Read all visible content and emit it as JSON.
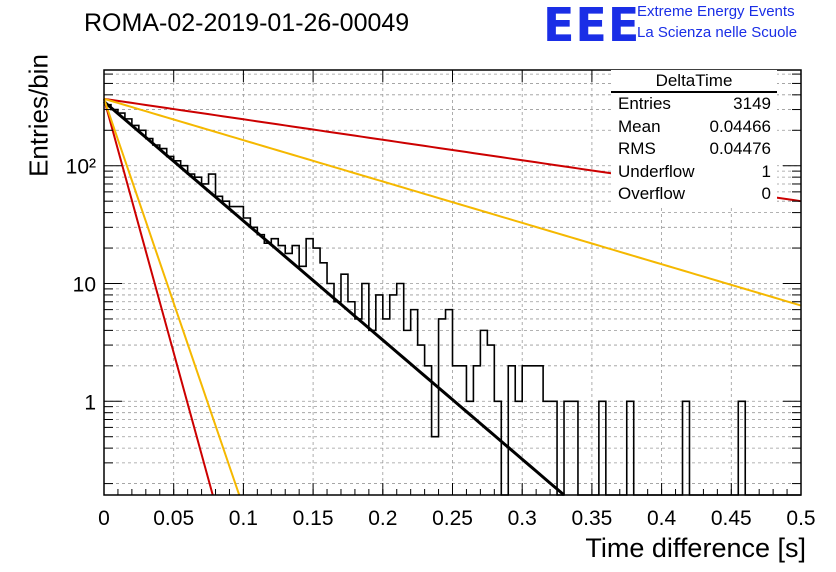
{
  "title": "ROMA-02-2019-01-26-00049",
  "logo": {
    "text": "EEE",
    "line1": "Extreme Energy Events",
    "line2": "La Scienza nelle Scuole",
    "color": "#1a2ee6"
  },
  "stats": {
    "title": "DeltaTime",
    "rows": [
      {
        "label": "Entries",
        "value": "3149"
      },
      {
        "label": "Mean",
        "value": "0.04466"
      },
      {
        "label": "RMS",
        "value": "0.04476"
      },
      {
        "label": "Underflow",
        "value": "1"
      },
      {
        "label": "Overflow",
        "value": "0"
      }
    ]
  },
  "chart_data": {
    "type": "line",
    "title": "ROMA-02-2019-01-26-00049",
    "xlabel": "Time difference [s]",
    "ylabel": "Entries/bin",
    "xlim": [
      0,
      0.5
    ],
    "ylim": [
      0.16,
      650
    ],
    "yscale": "log",
    "grid": true,
    "x_ticks": [
      "0",
      "0.05",
      "0.1",
      "0.15",
      "0.2",
      "0.25",
      "0.3",
      "0.35",
      "0.4",
      "0.45",
      "0.5"
    ],
    "y_ticks": [
      "1",
      "10",
      "10²"
    ],
    "histogram": {
      "bin_width": 0.005,
      "values": [
        330,
        300,
        280,
        250,
        220,
        200,
        170,
        150,
        140,
        120,
        110,
        100,
        85,
        80,
        70,
        85,
        55,
        50,
        45,
        45,
        36,
        30,
        26,
        22,
        24,
        21,
        18,
        21,
        14,
        24,
        20,
        15,
        10,
        7,
        12,
        7,
        5,
        10,
        4,
        8,
        5,
        8,
        10,
        4,
        6,
        3,
        2,
        0.5,
        5,
        6,
        2,
        2,
        1,
        2,
        4,
        3,
        1,
        0,
        2,
        1,
        2,
        2,
        2,
        1,
        1,
        0,
        1,
        1,
        0,
        0,
        0,
        1,
        0,
        0,
        0,
        1,
        0,
        0,
        0,
        0,
        0,
        0,
        0,
        1,
        0,
        0,
        0,
        0,
        0,
        0,
        0,
        1,
        0,
        0,
        0,
        0,
        0,
        0,
        0,
        0
      ],
      "nonzero_single_entries_x": [
        0.275,
        0.29,
        0.305,
        0.335,
        0.36,
        0.39,
        0.415,
        0.45
      ]
    },
    "fits": [
      {
        "color": "#000000",
        "y0": 350,
        "y_at": {
          "x": 0.33,
          "y": 0.16
        }
      },
      {
        "color": "#cc0000",
        "y0": 370,
        "y_at": {
          "x": 0.5,
          "y": 50
        }
      },
      {
        "color": "#f5b800",
        "y0": 370,
        "y_at": {
          "x": 0.5,
          "y": 6.5
        }
      },
      {
        "color": "#cc0000",
        "y0": 370,
        "y_at": {
          "x": 0.078,
          "y": 0.16
        }
      },
      {
        "color": "#f5b800",
        "y0": 370,
        "y_at": {
          "x": 0.097,
          "y": 0.16
        }
      }
    ]
  }
}
